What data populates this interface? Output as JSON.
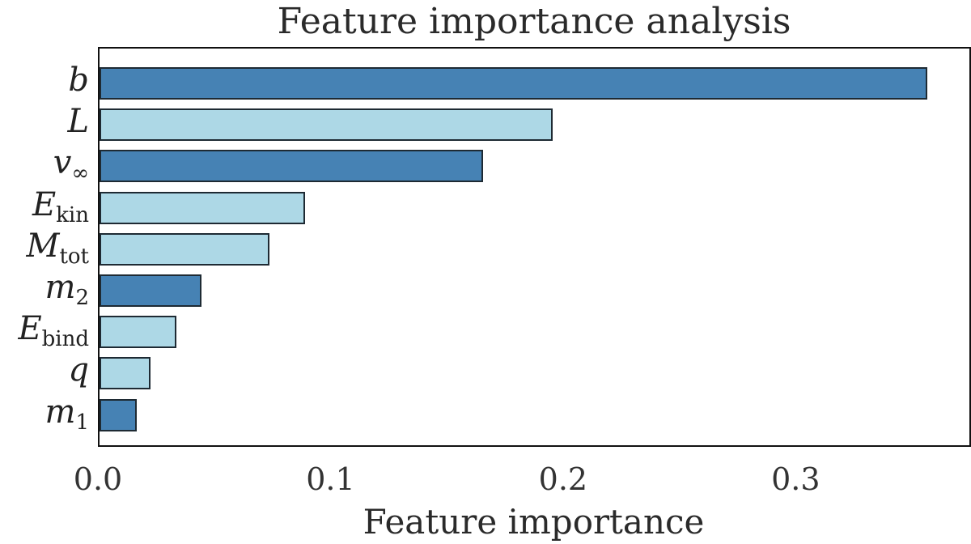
{
  "chart_data": {
    "type": "bar",
    "orientation": "horizontal",
    "title": "Feature importance analysis",
    "xlabel": "Feature importance",
    "ylabel": "",
    "xlim": [
      0.0,
      0.374
    ],
    "xticks": [
      "0.0",
      "0.1",
      "0.2",
      "0.3"
    ],
    "grid": false,
    "legend": null,
    "categories": [
      "b",
      "L",
      "v∞",
      "E_kin",
      "M_tot",
      "m2",
      "E_bind",
      "q",
      "m1"
    ],
    "values": [
      0.356,
      0.195,
      0.165,
      0.0885,
      0.073,
      0.044,
      0.033,
      0.022,
      0.016
    ],
    "bar_colors": [
      "#4682b4",
      "#add8e6",
      "#4682b4",
      "#add8e6",
      "#add8e6",
      "#4682b4",
      "#add8e6",
      "#add8e6",
      "#4682b4"
    ]
  },
  "labels": [
    {
      "main": "b",
      "sub": ""
    },
    {
      "main": "L",
      "sub": ""
    },
    {
      "main": "v",
      "sub": "∞"
    },
    {
      "main": "E",
      "sub": "kin"
    },
    {
      "main": "M",
      "sub": "tot"
    },
    {
      "main": "m",
      "sub": "2"
    },
    {
      "main": "E",
      "sub": "bind"
    },
    {
      "main": "q",
      "sub": ""
    },
    {
      "main": "m",
      "sub": "1"
    }
  ],
  "colors": {
    "dark_bar": "#4682b4",
    "light_bar": "#add8e6",
    "edge": "#1e2a33"
  }
}
